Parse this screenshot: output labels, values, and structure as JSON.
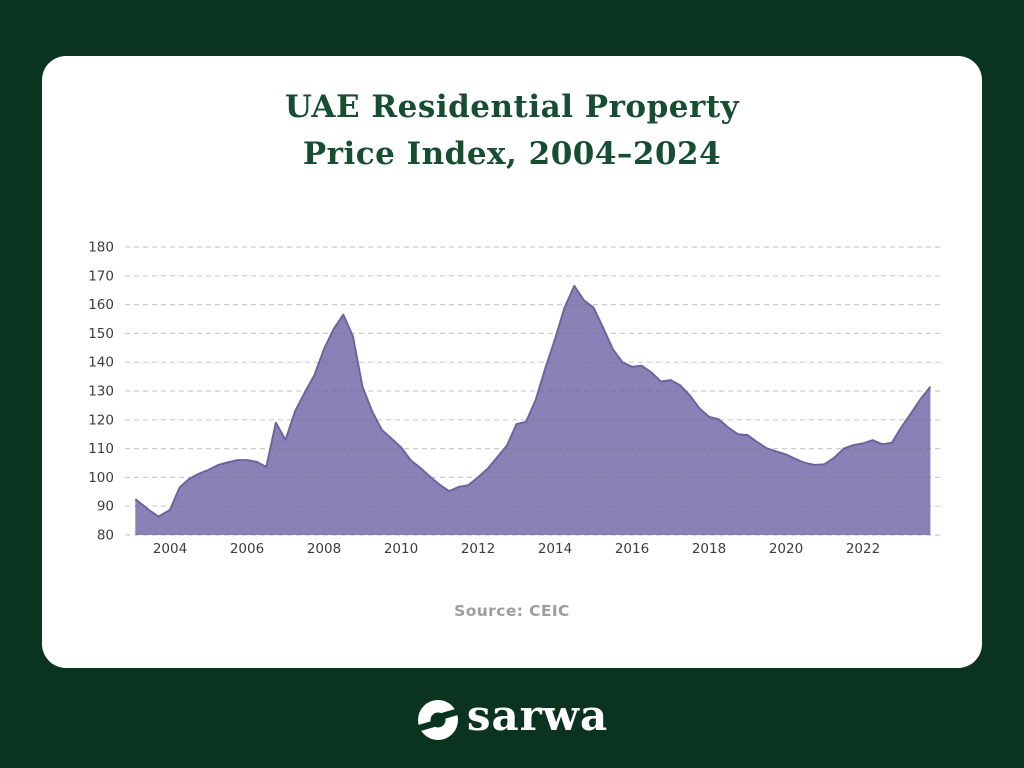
{
  "page": {
    "background_color": "#0a3420",
    "card_color": "#ffffff"
  },
  "title": {
    "line1": "UAE Residential Property",
    "line2": "Price Index, 2004–2024",
    "color": "#174d30"
  },
  "source": {
    "label": "Source: CEIC"
  },
  "brand": {
    "wordmark": "sarwa",
    "color": "#ffffff"
  },
  "chart_data": {
    "type": "area",
    "title": "UAE Residential Property Price Index, 2004-2024",
    "xlabel": "",
    "ylabel": "",
    "ylim": [
      80,
      180
    ],
    "yticks": [
      80,
      90,
      100,
      110,
      120,
      130,
      140,
      150,
      160,
      170,
      180
    ],
    "xticks": [
      2004,
      2006,
      2008,
      2010,
      2012,
      2014,
      2016,
      2018,
      2020,
      2022
    ],
    "grid": "horizontal-dashed",
    "legend_position": "none",
    "fill_color": "#8a82b7",
    "line_color": "#6c649f",
    "grid_color": "rgba(110,110,110,0.35)",
    "x": [
      2003.1,
      2003.45,
      2003.7,
      2004.0,
      2004.25,
      2004.5,
      2004.75,
      2005.0,
      2005.25,
      2005.5,
      2005.75,
      2006.0,
      2006.25,
      2006.5,
      2006.75,
      2007.0,
      2007.25,
      2007.5,
      2007.75,
      2008.0,
      2008.25,
      2008.5,
      2008.75,
      2009.0,
      2009.25,
      2009.5,
      2009.75,
      2010.0,
      2010.25,
      2010.5,
      2010.75,
      2011.0,
      2011.25,
      2011.5,
      2011.75,
      2012.0,
      2012.25,
      2012.5,
      2012.75,
      2013.0,
      2013.25,
      2013.5,
      2013.75,
      2014.0,
      2014.25,
      2014.5,
      2014.75,
      2015.0,
      2015.25,
      2015.5,
      2015.75,
      2016.0,
      2016.25,
      2016.5,
      2016.75,
      2017.0,
      2017.25,
      2017.5,
      2017.75,
      2018.0,
      2018.25,
      2018.5,
      2018.75,
      2019.0,
      2019.25,
      2019.5,
      2019.75,
      2020.0,
      2020.25,
      2020.5,
      2020.75,
      2021.0,
      2021.25,
      2021.5,
      2021.75,
      2022.0,
      2022.25,
      2022.5,
      2022.75,
      2023.0,
      2023.25,
      2023.5,
      2023.75
    ],
    "values": [
      92.5,
      88.7,
      86.4,
      88.7,
      96.5,
      99.5,
      101.3,
      102.6,
      104.3,
      105.2,
      106.0,
      106.0,
      105.4,
      103.6,
      119.0,
      113.0,
      123.0,
      129.5,
      135.5,
      144.5,
      151.5,
      156.5,
      149.0,
      131.5,
      123.0,
      116.5,
      113.5,
      110.5,
      106.0,
      103.3,
      100.3,
      97.5,
      95.2,
      96.7,
      97.3,
      100.0,
      103.0,
      107.0,
      111.0,
      118.5,
      119.3,
      127.0,
      138.0,
      148.0,
      159.0,
      166.5,
      161.5,
      159.0,
      152.0,
      144.5,
      140.0,
      138.4,
      138.8,
      136.5,
      133.3,
      133.8,
      132.0,
      128.5,
      124.0,
      121.0,
      120.2,
      117.3,
      115.0,
      114.7,
      112.3,
      110.1,
      109.0,
      108.0,
      106.4,
      105.0,
      104.3,
      104.6,
      106.8,
      110.0,
      111.2,
      111.8,
      112.9,
      111.5,
      112.0,
      117.5,
      122.3,
      127.3,
      131.5
    ]
  }
}
